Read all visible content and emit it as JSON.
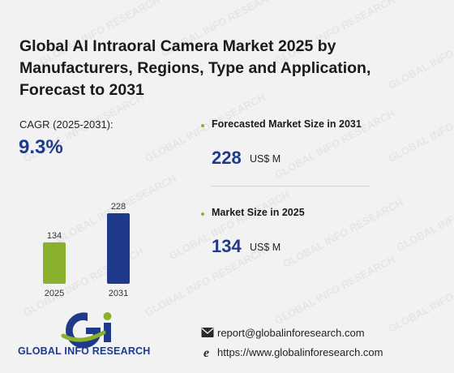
{
  "title": "Global AI Intraoral Camera Market 2025 by Manufacturers, Regions, Type and Application, Forecast to 2031",
  "cagr": {
    "label": "CAGR (2025-2031):",
    "value": "9.3%"
  },
  "stats": [
    {
      "label": "Forecasted Market Size in 2031",
      "value": "228",
      "unit": "US$ M"
    },
    {
      "label": "Market Size in 2025",
      "value": "134",
      "unit": "US$ M"
    }
  ],
  "chart_data": {
    "type": "bar",
    "categories": [
      "2025",
      "2031"
    ],
    "values": [
      134,
      228
    ],
    "colors": [
      "#8ab12d",
      "#1f3a8a"
    ]
  },
  "brand": {
    "name": "GLOBAL INFO RESEARCH",
    "logo_mark": "Gi"
  },
  "watermark_text": "GLOBAL INFO RESEARCH",
  "contact": {
    "email": "report@globalinforesearch.com",
    "website": "https://www.globalinforesearch.com",
    "email_icon": "envelope-icon",
    "website_icon": "browser-e-icon"
  }
}
